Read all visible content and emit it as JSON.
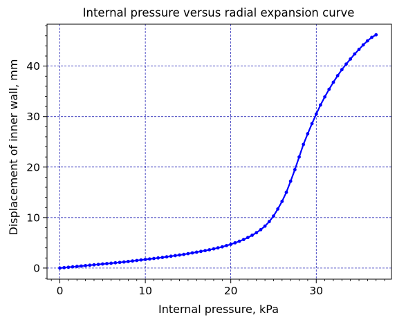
{
  "chart_data": {
    "type": "line",
    "title": "Internal pressure versus radial expansion curve",
    "xlabel": "Internal pressure, kPa",
    "ylabel": "Displacement of inner wall, mm",
    "xlim": [
      -1.5,
      38.8
    ],
    "ylim": [
      -2.2,
      48.3
    ],
    "xticks": [
      0,
      10,
      20,
      30
    ],
    "yticks": [
      0,
      10,
      20,
      30,
      40
    ],
    "grid": true,
    "colors": {
      "series": "#0000ff",
      "grid": "#0000aa"
    },
    "series": [
      {
        "marker": "circle",
        "x": [
          0.0,
          0.5,
          1.0,
          1.5,
          2.0,
          2.5,
          3.0,
          3.5,
          4.0,
          4.5,
          5.0,
          5.5,
          6.0,
          6.5,
          7.0,
          7.5,
          8.0,
          8.5,
          9.0,
          9.5,
          10.0,
          10.5,
          11.0,
          11.5,
          12.0,
          12.5,
          13.0,
          13.5,
          14.0,
          14.5,
          15.0,
          15.5,
          16.0,
          16.5,
          17.0,
          17.5,
          18.0,
          18.5,
          19.0,
          19.5,
          20.0,
          20.5,
          21.0,
          21.5,
          22.0,
          22.5,
          23.0,
          23.5,
          24.0,
          24.5,
          25.0,
          25.5,
          26.0,
          26.5,
          27.0,
          27.5,
          28.0,
          28.5,
          29.0,
          29.5,
          30.0,
          30.5,
          31.0,
          31.5,
          32.0,
          32.5,
          33.0,
          33.5,
          34.0,
          34.5,
          35.0,
          35.5,
          36.0,
          36.5,
          37.0
        ],
        "y": [
          0.0,
          0.08,
          0.16,
          0.24,
          0.32,
          0.4,
          0.48,
          0.56,
          0.64,
          0.72,
          0.8,
          0.88,
          0.96,
          1.04,
          1.12,
          1.2,
          1.3,
          1.4,
          1.5,
          1.6,
          1.7,
          1.8,
          1.9,
          2.0,
          2.1,
          2.22,
          2.34,
          2.46,
          2.58,
          2.7,
          2.85,
          3.0,
          3.15,
          3.3,
          3.45,
          3.62,
          3.8,
          4.0,
          4.2,
          4.45,
          4.7,
          5.0,
          5.3,
          5.65,
          6.05,
          6.5,
          7.0,
          7.6,
          8.3,
          9.2,
          10.3,
          11.7,
          13.2,
          15.0,
          17.2,
          19.5,
          22.0,
          24.5,
          26.6,
          28.6,
          30.5,
          32.3,
          33.9,
          35.4,
          36.8,
          38.1,
          39.3,
          40.4,
          41.4,
          42.4,
          43.3,
          44.2,
          45.0,
          45.7,
          46.2
        ]
      }
    ]
  }
}
